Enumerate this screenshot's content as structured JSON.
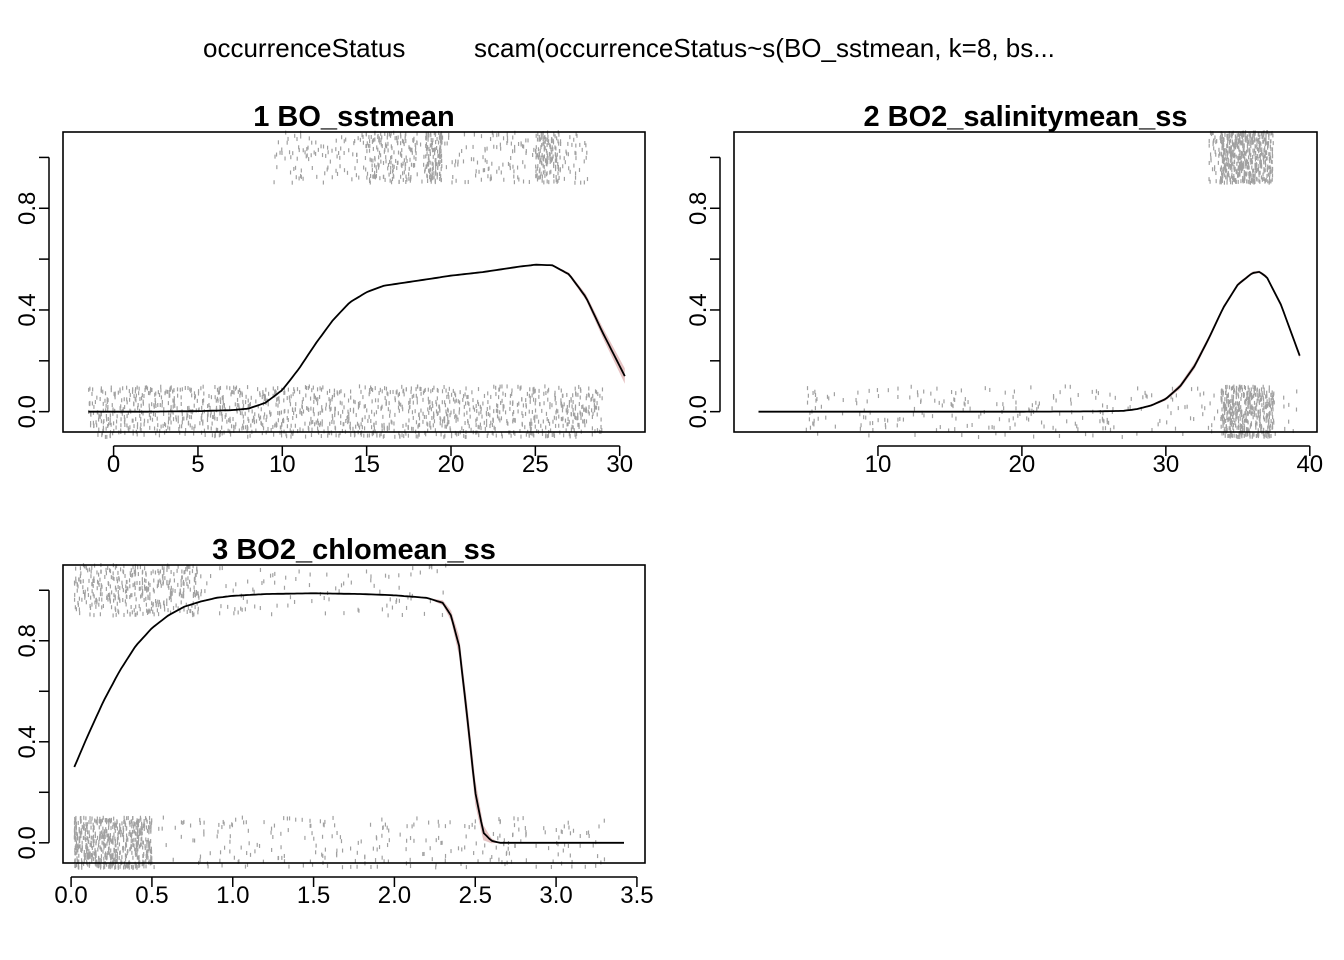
{
  "figure": {
    "title_response": "occurrenceStatus",
    "title_model": "scam(occurrenceStatus~s(BO_sstmean, k=8, bs..."
  },
  "colors": {
    "points": "#a0a0a0",
    "ci_band": "#e6c4c4",
    "curve": "#000000",
    "background": "#ffffff"
  },
  "chart_data": [
    {
      "type": "line",
      "index": 1,
      "title": "1  BO_sstmean",
      "xlabel": "",
      "ylabel": "",
      "xlim": [
        -3,
        31.5
      ],
      "ylim": [
        -0.08,
        1.1
      ],
      "x_ticks": [
        0,
        5,
        10,
        15,
        20,
        25,
        30
      ],
      "y_ticks": [
        0.0,
        0.4,
        0.8
      ],
      "grid": false,
      "legend": "none",
      "series": [
        {
          "x": [
            -1.5,
            2,
            5,
            7,
            8,
            9,
            10,
            11,
            12,
            13,
            14,
            15,
            16,
            18,
            20,
            22,
            24,
            25,
            26,
            27,
            28,
            29,
            30.3
          ],
          "y": [
            0.0,
            0.0,
            0.002,
            0.006,
            0.012,
            0.035,
            0.085,
            0.17,
            0.27,
            0.36,
            0.43,
            0.47,
            0.495,
            0.515,
            0.535,
            0.55,
            0.57,
            0.578,
            0.576,
            0.54,
            0.45,
            0.31,
            0.14
          ],
          "ci_width": [
            0,
            0,
            0,
            0,
            0,
            0,
            0,
            0,
            0,
            0,
            0,
            0,
            0,
            0,
            0,
            0,
            0,
            0,
            0.003,
            0.006,
            0.012,
            0.02,
            0.03
          ]
        }
      ],
      "rug": {
        "presence": {
          "x_range": [
            9.5,
            28.1
          ],
          "clusters": [
            [
              15,
              18
            ],
            [
              18.5,
              19.5
            ],
            [
              25,
              26.5
            ]
          ]
        },
        "absence": {
          "x_range": [
            -1.5,
            29
          ]
        }
      }
    },
    {
      "type": "line",
      "index": 2,
      "title": "2  BO2_salinitymean_ss",
      "xlabel": "",
      "ylabel": "",
      "xlim": [
        0,
        40.5
      ],
      "ylim": [
        -0.08,
        1.1
      ],
      "x_ticks": [
        10,
        20,
        30,
        40
      ],
      "y_ticks": [
        0.0,
        0.4,
        0.8
      ],
      "grid": false,
      "legend": "none",
      "series": [
        {
          "x": [
            1.7,
            10,
            20,
            25,
            27,
            28,
            29,
            30,
            31,
            32,
            33,
            34,
            35,
            36,
            36.5,
            37,
            38,
            39.3
          ],
          "y": [
            0.0,
            0.0,
            0.0,
            0.001,
            0.003,
            0.01,
            0.025,
            0.05,
            0.1,
            0.18,
            0.29,
            0.41,
            0.5,
            0.545,
            0.55,
            0.53,
            0.42,
            0.22
          ],
          "ci_width": [
            0,
            0,
            0,
            0,
            0,
            0.002,
            0.004,
            0.006,
            0.01,
            0.012,
            0.01,
            0.008,
            0.006,
            0.005,
            0.005,
            0.006,
            0.008,
            0.012
          ]
        }
      ],
      "rug": {
        "presence": {
          "x_range": [
            33,
            37.5
          ],
          "dense": [
            33.8,
            37.3
          ]
        },
        "absence": {
          "x_range": [
            5,
            39.3
          ],
          "dense": [
            33.8,
            37.5
          ]
        }
      }
    },
    {
      "type": "line",
      "index": 3,
      "title": "3  BO2_chlomean_ss",
      "xlabel": "",
      "ylabel": "",
      "xlim": [
        -0.05,
        3.55
      ],
      "ylim": [
        -0.08,
        1.1
      ],
      "x_ticks": [
        0.0,
        0.5,
        1.0,
        1.5,
        2.0,
        2.5,
        3.0,
        3.5
      ],
      "y_ticks": [
        0.0,
        0.4,
        0.8
      ],
      "grid": false,
      "legend": "none",
      "series": [
        {
          "x": [
            0.02,
            0.1,
            0.2,
            0.3,
            0.4,
            0.5,
            0.6,
            0.7,
            0.8,
            0.9,
            1.0,
            1.2,
            1.5,
            1.8,
            2.0,
            2.2,
            2.3,
            2.35,
            2.4,
            2.45,
            2.5,
            2.55,
            2.6,
            2.65,
            3.0,
            3.42
          ],
          "y": [
            0.3,
            0.42,
            0.56,
            0.68,
            0.78,
            0.85,
            0.9,
            0.935,
            0.955,
            0.97,
            0.978,
            0.985,
            0.988,
            0.985,
            0.98,
            0.97,
            0.95,
            0.9,
            0.78,
            0.5,
            0.2,
            0.04,
            0.008,
            0.0,
            0.0,
            0.0
          ],
          "ci_width": [
            0,
            0,
            0,
            0,
            0,
            0,
            0,
            0,
            0,
            0,
            0,
            0,
            0,
            0,
            0,
            0,
            0.01,
            0.02,
            0.04,
            0.05,
            0.05,
            0.03,
            0.01,
            0,
            0,
            0
          ]
        }
      ],
      "rug": {
        "presence": {
          "x_range": [
            0.02,
            2.32
          ],
          "dense": [
            0.02,
            0.8
          ]
        },
        "absence": {
          "x_range": [
            0.02,
            3.3
          ],
          "dense": [
            0.02,
            0.5
          ]
        }
      }
    }
  ]
}
